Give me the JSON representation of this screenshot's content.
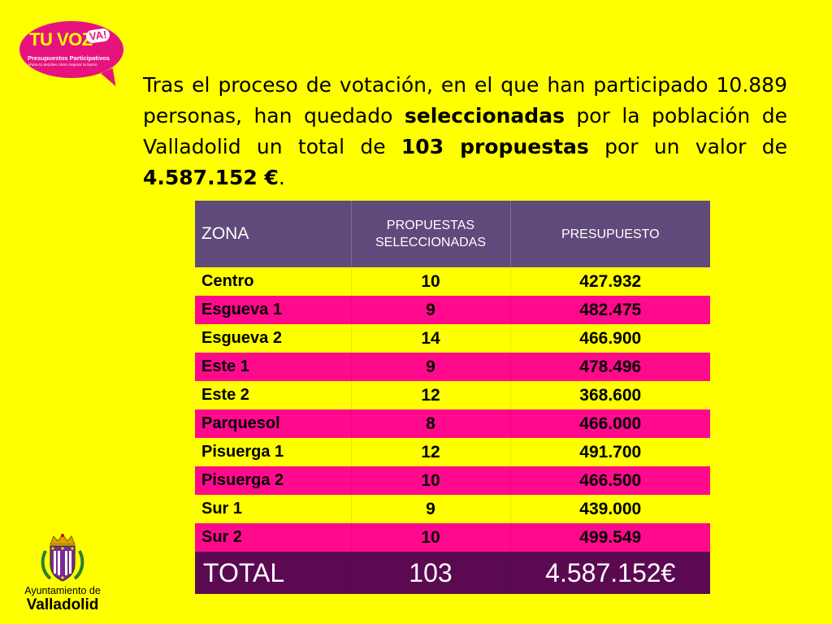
{
  "logo": {
    "main": "TU VOZ",
    "badge": "VA!",
    "subtitle": "Presupuestos Participativos",
    "tagline": "Ahora tú decides cómo mejorar tu barrio"
  },
  "intro": {
    "part1": "Tras el proceso de votación, en el que han participado 10.889 personas, han quedado ",
    "bold1": "seleccionadas",
    "part2": " por la población de Valladolid un total de ",
    "bold2": "103 propuestas",
    "part3": " por un valor de ",
    "bold3": "4.587.152 €",
    "part4": "."
  },
  "table": {
    "headers": [
      "ZONA",
      "PROPUESTAS SELECCIONADAS",
      "PRESUPUESTO"
    ],
    "rows": [
      {
        "zona": "Centro",
        "propuestas": "10",
        "presupuesto": "427.932"
      },
      {
        "zona": "Esgueva 1",
        "propuestas": "9",
        "presupuesto": "482.475"
      },
      {
        "zona": "Esgueva 2",
        "propuestas": "14",
        "presupuesto": "466.900"
      },
      {
        "zona": "Este 1",
        "propuestas": "9",
        "presupuesto": "478.496"
      },
      {
        "zona": "Este 2",
        "propuestas": "12",
        "presupuesto": "368.600"
      },
      {
        "zona": "Parquesol",
        "propuestas": "8",
        "presupuesto": "466.000"
      },
      {
        "zona": "Pisuerga 1",
        "propuestas": "12",
        "presupuesto": "491.700"
      },
      {
        "zona": "Pisuerga 2",
        "propuestas": "10",
        "presupuesto": "466.500"
      },
      {
        "zona": "Sur 1",
        "propuestas": "9",
        "presupuesto": "439.000"
      },
      {
        "zona": "Sur 2",
        "propuestas": "10",
        "presupuesto": "499.549"
      }
    ],
    "total": {
      "zona": "TOTAL",
      "propuestas": "103",
      "presupuesto": "4.587.152€"
    }
  },
  "ayuntamiento": {
    "line1": "Ayuntamiento de",
    "line2": "Valladolid"
  },
  "colors": {
    "background": "#ffff00",
    "header": "#604a7b",
    "row_alt": "#ff0a8c",
    "total": "#5b0a52",
    "logo": "#e6137f"
  }
}
